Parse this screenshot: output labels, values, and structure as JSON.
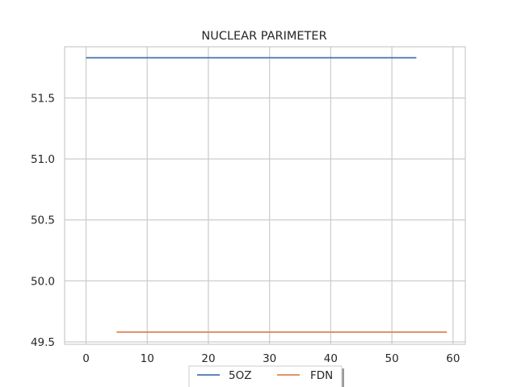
{
  "chart_data": {
    "type": "line",
    "title": "NUCLEAR PARIMETER",
    "xlabel": "",
    "ylabel": "",
    "xlim": [
      -3.5,
      62
    ],
    "ylim": [
      49.48,
      51.92
    ],
    "x_ticks": [
      0,
      10,
      20,
      30,
      40,
      50,
      60
    ],
    "y_ticks": [
      49.5,
      50.0,
      50.5,
      51.0,
      51.5
    ],
    "y_tick_labels": [
      "49.5",
      "50.0",
      "50.5",
      "51.0",
      "51.5"
    ],
    "grid": true,
    "legend_position": "bottom-center",
    "series": [
      {
        "name": "5OZ",
        "color": "#4c72b0",
        "x": [
          0,
          54
        ],
        "y": [
          51.83,
          51.83
        ]
      },
      {
        "name": "FDN",
        "color": "#dd8452",
        "x": [
          5,
          59
        ],
        "y": [
          49.58,
          49.58
        ]
      }
    ]
  }
}
